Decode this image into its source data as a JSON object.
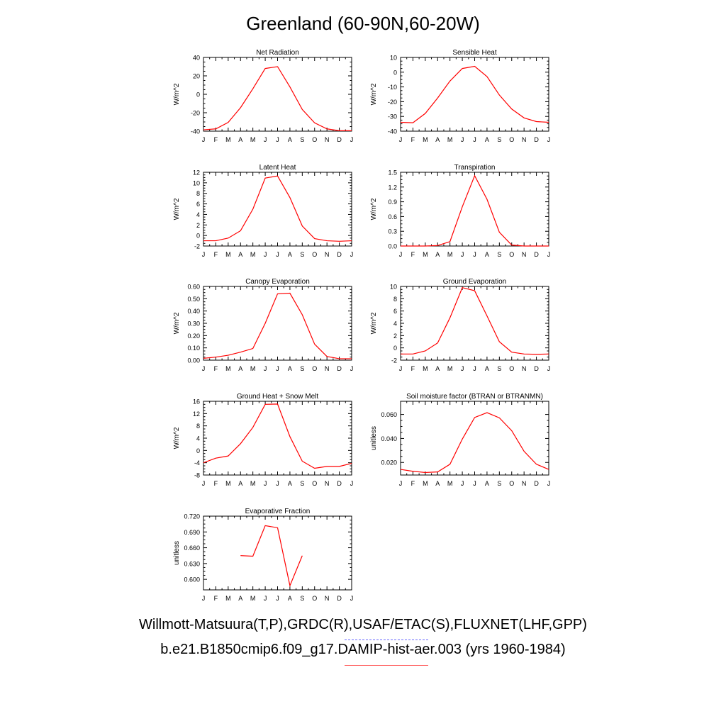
{
  "title": "Greenland (60-90N,60-20W)",
  "legend": {
    "observations": "Willmott-Matsuura(T,P),GRDC(R),USAF/ETAC(S),FLUXNET(LHF,GPP)",
    "model": "b.e21.B1850cmip6.f09_g17.DAMIP-hist-aer.003 (yrs 1960-1984)",
    "observations_color": "#6b6bff",
    "model_color": "#ff0000"
  },
  "chart_data": [
    {
      "type": "line",
      "title": "Net Radiation",
      "ylabel": "W/m^2",
      "x": [
        "J",
        "F",
        "M",
        "A",
        "M",
        "J",
        "J",
        "A",
        "S",
        "O",
        "N",
        "D",
        "J"
      ],
      "ylim": [
        -40,
        40
      ],
      "yticks": [
        "-40",
        "-20",
        "0",
        "20",
        "40"
      ],
      "ytick_values": [
        -40,
        -20,
        0,
        20,
        40
      ],
      "series": [
        {
          "color": "#ff0000",
          "values": [
            -38.5,
            -37.5,
            -30.5,
            -14.5,
            6,
            28,
            30,
            8,
            -16.5,
            -31,
            -37.5,
            -39.5,
            -39.5
          ]
        }
      ]
    },
    {
      "type": "line",
      "title": "Sensible Heat",
      "ylabel": "W/m^2",
      "x": [
        "J",
        "F",
        "M",
        "A",
        "M",
        "J",
        "J",
        "A",
        "S",
        "O",
        "N",
        "D",
        "J"
      ],
      "ylim": [
        -40,
        10
      ],
      "yticks": [
        "-40",
        "-30",
        "-20",
        "-10",
        "0",
        "10"
      ],
      "ytick_values": [
        -40,
        -30,
        -20,
        -10,
        0,
        10
      ],
      "series": [
        {
          "color": "#ff0000",
          "values": [
            -34,
            -34.3,
            -28,
            -17.5,
            -6,
            2.5,
            4,
            -3,
            -15.5,
            -25,
            -31,
            -33.5,
            -34
          ]
        }
      ]
    },
    {
      "type": "line",
      "title": "Latent Heat",
      "ylabel": "W/m^2",
      "x": [
        "J",
        "F",
        "M",
        "A",
        "M",
        "J",
        "J",
        "A",
        "S",
        "O",
        "N",
        "D",
        "J"
      ],
      "ylim": [
        -2,
        12
      ],
      "yticks": [
        "-2",
        "0",
        "2",
        "4",
        "6",
        "8",
        "10",
        "12"
      ],
      "ytick_values": [
        -2,
        0,
        2,
        4,
        6,
        8,
        10,
        12
      ],
      "series": [
        {
          "color": "#ff0000",
          "values": [
            -1,
            -1,
            -0.5,
            0.9,
            5,
            10.9,
            11.3,
            7.2,
            1.8,
            -0.6,
            -1,
            -1.1,
            -1
          ]
        }
      ]
    },
    {
      "type": "line",
      "title": "Transpiration",
      "ylabel": "W/m^2",
      "x": [
        "J",
        "F",
        "M",
        "A",
        "M",
        "J",
        "J",
        "A",
        "S",
        "O",
        "N",
        "D",
        "J"
      ],
      "ylim": [
        0,
        1.5
      ],
      "yticks": [
        "0.0",
        "0.3",
        "0.6",
        "0.9",
        "1.2",
        "1.5"
      ],
      "ytick_values": [
        0,
        0.3,
        0.6,
        0.9,
        1.2,
        1.5
      ],
      "series": [
        {
          "color": "#ff0000",
          "values": [
            0,
            0,
            0,
            0.01,
            0.09,
            0.8,
            1.43,
            0.95,
            0.28,
            0.02,
            0,
            0,
            0
          ]
        }
      ]
    },
    {
      "type": "line",
      "title": "Canopy Evaporation",
      "ylabel": "W/m^2",
      "x": [
        "J",
        "F",
        "M",
        "A",
        "M",
        "J",
        "J",
        "A",
        "S",
        "O",
        "N",
        "D",
        "J"
      ],
      "ylim": [
        0,
        0.6
      ],
      "yticks": [
        "0.00",
        "0.10",
        "0.20",
        "0.30",
        "0.40",
        "0.50",
        "0.60"
      ],
      "ytick_values": [
        0,
        0.1,
        0.2,
        0.3,
        0.4,
        0.5,
        0.6
      ],
      "series": [
        {
          "color": "#ff0000",
          "values": [
            0.015,
            0.025,
            0.04,
            0.065,
            0.095,
            0.3,
            0.54,
            0.545,
            0.37,
            0.13,
            0.03,
            0.012,
            0.012
          ]
        }
      ]
    },
    {
      "type": "line",
      "title": "Ground Evaporation",
      "ylabel": "W/m^2",
      "x": [
        "J",
        "F",
        "M",
        "A",
        "M",
        "J",
        "J",
        "A",
        "S",
        "O",
        "N",
        "D",
        "J"
      ],
      "ylim": [
        -2,
        10
      ],
      "yticks": [
        "-2",
        "0",
        "2",
        "4",
        "6",
        "8",
        "10"
      ],
      "ytick_values": [
        -2,
        0,
        2,
        4,
        6,
        8,
        10
      ],
      "series": [
        {
          "color": "#ff0000",
          "values": [
            -1,
            -1,
            -0.5,
            0.8,
            4.9,
            9.8,
            9.3,
            5.2,
            1,
            -0.7,
            -1,
            -1.05,
            -1
          ]
        }
      ]
    },
    {
      "type": "line",
      "title": "Ground Heat + Snow Melt",
      "ylabel": "W/m^2",
      "x": [
        "J",
        "F",
        "M",
        "A",
        "M",
        "J",
        "J",
        "A",
        "S",
        "O",
        "N",
        "D",
        "J"
      ],
      "ylim": [
        -8,
        16
      ],
      "yticks": [
        "-8",
        "-4",
        "0",
        "4",
        "8",
        "12",
        "16"
      ],
      "ytick_values": [
        -8,
        -4,
        0,
        4,
        8,
        12,
        16
      ],
      "series": [
        {
          "color": "#ff0000",
          "values": [
            -4,
            -2.5,
            -1.8,
            2.2,
            7.5,
            15,
            15.1,
            4.5,
            -3.5,
            -5.8,
            -5.2,
            -5.2,
            -4.2
          ]
        }
      ]
    },
    {
      "type": "line",
      "title": "Soil moisture factor (BTRAN or BTRANMN)",
      "ylabel": "unitless",
      "x": [
        "J",
        "F",
        "M",
        "A",
        "M",
        "J",
        "J",
        "A",
        "S",
        "O",
        "N",
        "D",
        "J"
      ],
      "ylim": [
        0.0095,
        0.071
      ],
      "yticks": [
        "0.020",
        "0.040",
        "0.060"
      ],
      "ytick_values": [
        0.02,
        0.04,
        0.06
      ],
      "series": [
        {
          "color": "#ff0000",
          "values": [
            0.0142,
            0.0126,
            0.0116,
            0.0121,
            0.0185,
            0.0395,
            0.0575,
            0.0615,
            0.0572,
            0.0465,
            0.0293,
            0.0185,
            0.0142
          ]
        }
      ]
    },
    {
      "type": "line",
      "title": "Evaporative Fraction",
      "ylabel": "unitless",
      "x": [
        "J",
        "F",
        "M",
        "A",
        "M",
        "J",
        "J",
        "A",
        "S",
        "O",
        "N",
        "D",
        "J"
      ],
      "ylim": [
        0.58,
        0.72
      ],
      "yticks": [
        "0.600",
        "0.630",
        "0.660",
        "0.690",
        "0.720"
      ],
      "ytick_values": [
        0.6,
        0.63,
        0.66,
        0.69,
        0.72
      ],
      "series": [
        {
          "color": "#ff0000",
          "values": [
            null,
            null,
            null,
            0.645,
            0.644,
            0.702,
            0.698,
            0.588,
            0.645,
            null,
            null,
            null,
            null
          ]
        }
      ]
    }
  ]
}
